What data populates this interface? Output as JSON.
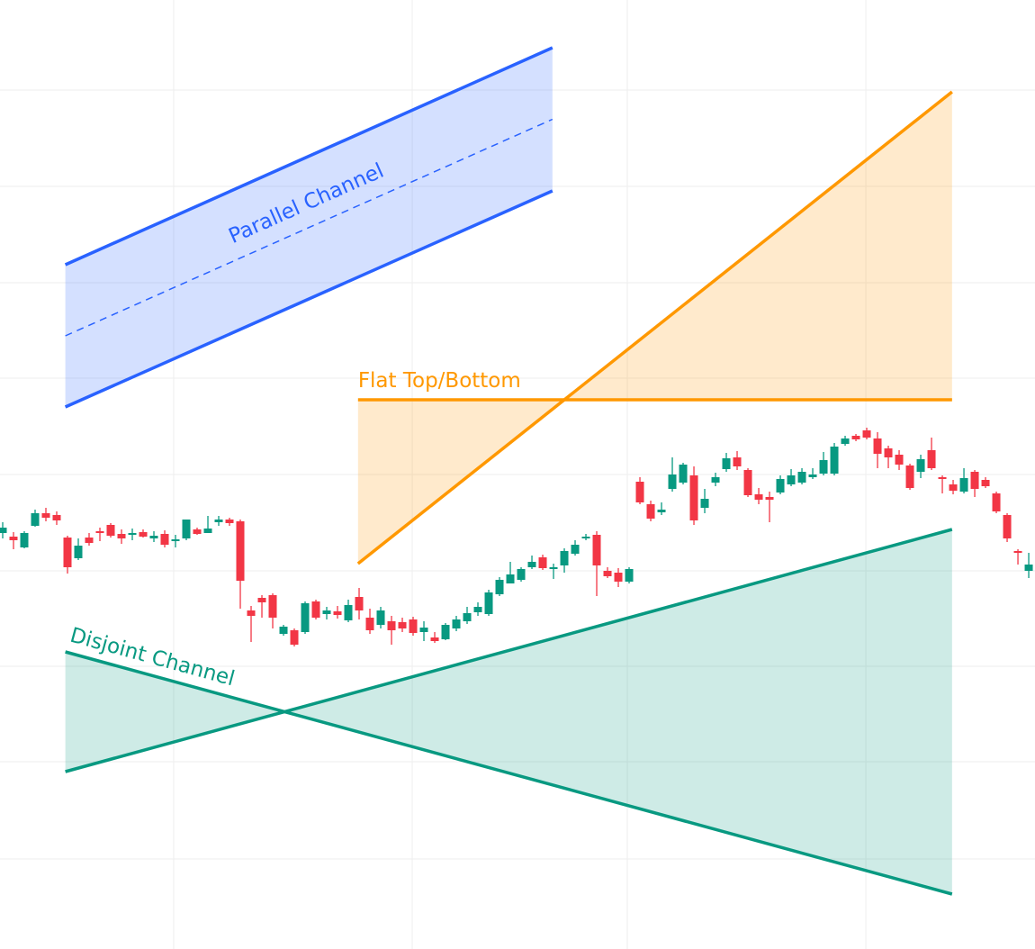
{
  "chart_data": {
    "type": "candlestick",
    "up_color": "#089981",
    "down_color": "#f23645",
    "grid": true,
    "grid_color": "#eeeeee",
    "xlim": [
      -0.25,
      95.58
    ],
    "ylim": [
      0,
      1054
    ],
    "xticks": [
      15.83,
      37.92,
      57.83,
      79.92
    ],
    "yticks": [
      100,
      208,
      314,
      420,
      527,
      634,
      740,
      847,
      954
    ],
    "open": [
      462,
      458,
      446,
      470,
      484,
      482,
      457,
      434,
      457,
      464,
      471,
      461,
      460,
      463,
      456,
      461,
      453,
      456,
      466,
      462,
      474,
      477,
      475,
      376,
      390,
      393,
      350,
      354,
      352,
      386,
      372,
      375,
      365,
      391,
      368,
      360,
      364,
      363,
      366,
      352,
      346,
      344,
      356,
      364,
      374,
      372,
      394,
      406,
      410,
      424,
      435,
      422,
      426,
      439,
      456,
      460,
      420,
      418,
      408,
      519,
      494,
      485,
      511,
      518,
      526,
      490,
      518,
      533,
      546,
      532,
      505,
      502,
      507,
      516,
      518,
      524,
      528,
      528,
      561,
      570,
      576,
      567,
      556,
      549,
      537,
      530,
      554,
      524,
      516,
      508,
      530,
      521,
      506,
      482,
      442,
      420
    ],
    "high": [
      474,
      463,
      464,
      488,
      490,
      486,
      459,
      456,
      462,
      468,
      473,
      466,
      467,
      466,
      464,
      465,
      460,
      477,
      468,
      481,
      481,
      479,
      477,
      381,
      393,
      395,
      360,
      356,
      386,
      388,
      380,
      381,
      388,
      401,
      378,
      380,
      370,
      368,
      369,
      364,
      352,
      362,
      370,
      380,
      385,
      399,
      413,
      430,
      424,
      437,
      438,
      428,
      445,
      454,
      461,
      464,
      424,
      423,
      424,
      524,
      498,
      496,
      546,
      540,
      536,
      511,
      529,
      551,
      553,
      534,
      512,
      508,
      526,
      533,
      534,
      534,
      552,
      562,
      570,
      572,
      579,
      574,
      559,
      554,
      539,
      549,
      568,
      526,
      521,
      534,
      532,
      524,
      508,
      484,
      444,
      440
    ],
    "low": [
      456,
      444,
      445,
      469,
      475,
      471,
      417,
      432,
      448,
      453,
      457,
      450,
      454,
      457,
      452,
      446,
      446,
      454,
      460,
      462,
      470,
      470,
      378,
      341,
      368,
      356,
      348,
      336,
      350,
      366,
      366,
      367,
      363,
      366,
      350,
      356,
      338,
      352,
      348,
      342,
      340,
      343,
      353,
      361,
      370,
      370,
      392,
      406,
      408,
      422,
      421,
      411,
      418,
      437,
      454,
      392,
      412,
      402,
      406,
      494,
      475,
      482,
      508,
      516,
      471,
      484,
      514,
      530,
      532,
      502,
      494,
      474,
      505,
      514,
      516,
      522,
      526,
      526,
      559,
      564,
      566,
      534,
      534,
      532,
      510,
      523,
      532,
      506,
      505,
      506,
      502,
      512,
      484,
      452,
      427,
      412
    ],
    "close": [
      468,
      454,
      462,
      484,
      479,
      476,
      424,
      448,
      451,
      462,
      459,
      456,
      462,
      458,
      459,
      449,
      455,
      477,
      461,
      467,
      477,
      473,
      409,
      370,
      385,
      368,
      358,
      338,
      384,
      368,
      376,
      371,
      382,
      376,
      354,
      376,
      354,
      356,
      351,
      357,
      342,
      360,
      366,
      373,
      380,
      396,
      410,
      416,
      422,
      430,
      423,
      424,
      442,
      449,
      458,
      426,
      414,
      408,
      422,
      496,
      478,
      488,
      527,
      538,
      476,
      500,
      524,
      545,
      536,
      504,
      499,
      499,
      522,
      526,
      530,
      527,
      543,
      558,
      567,
      566,
      568,
      550,
      546,
      538,
      512,
      544,
      534,
      522,
      509,
      523,
      511,
      514,
      486,
      456,
      440,
      427
    ],
    "drawings": [
      {
        "type": "parallel_channel",
        "label": "Parallel Channel",
        "color": "#2962ff",
        "x": [
          5.8,
          50.9
        ],
        "top": [
          760,
          1001
        ],
        "bottom": [
          602,
          842
        ]
      },
      {
        "type": "flat_top_bottom",
        "label": "Flat Top/Bottom",
        "color": "#ff9800",
        "x": [
          32.9,
          87.9
        ],
        "flat": 610,
        "line": [
          428,
          952
        ]
      },
      {
        "type": "disjoint_channel",
        "label": "Disjoint Channel",
        "color": "#089981",
        "x": [
          5.8,
          87.9
        ],
        "line1": [
          330,
          61
        ],
        "line2": [
          197,
          466
        ]
      }
    ]
  }
}
